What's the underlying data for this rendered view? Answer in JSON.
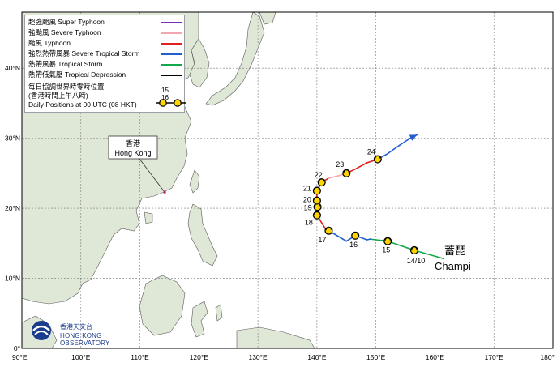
{
  "legend": {
    "items": [
      {
        "label_cn": "超強颱風",
        "label_en": "Super Typhoon",
        "color": "#7b2fbf"
      },
      {
        "label_cn": "強颱風",
        "label_en": "Severe Typhoon",
        "color": "#f4a6b0"
      },
      {
        "label_cn": "颱風",
        "label_en": "Typhoon",
        "color": "#e01f1f"
      },
      {
        "label_cn": "強烈熱帶風暴",
        "label_en": "Severe Tropical Storm",
        "color": "#1f5fcf"
      },
      {
        "label_cn": "熱帶風暴",
        "label_en": "Tropical Storm",
        "color": "#13a84a"
      },
      {
        "label_cn": "熱帶低氣壓",
        "label_en": "Tropical Depression",
        "color": "#000000"
      }
    ],
    "daily_cn_1": "每日協調世界時零時位置",
    "daily_cn_2": "(香港時間上午八時)",
    "daily_en": "Daily Positions at 00 UTC (08 HKT)",
    "daily_sample_1": "15",
    "daily_sample_2": "16"
  },
  "axes": {
    "lon_labels": [
      "90°E",
      "100°E",
      "110°E",
      "120°E",
      "130°E",
      "140°E",
      "150°E",
      "160°E",
      "170°E",
      "180°"
    ],
    "lat_labels": [
      "0°",
      "10°N",
      "20°N",
      "30°N",
      "40°N"
    ]
  },
  "hong_kong": {
    "label_cn": "香港",
    "label_en": "Hong Kong",
    "lon": 114.2,
    "lat": 22.3
  },
  "storm": {
    "name_cn": "蓄琵",
    "name_en": "Champi",
    "track": [
      {
        "lon": 161.5,
        "lat": 12.8,
        "cat": "td"
      },
      {
        "lon": 156.5,
        "lat": 14.0,
        "cat": "ts"
      },
      {
        "lon": 152.0,
        "lat": 15.3,
        "cat": "ts"
      },
      {
        "lon": 149.0,
        "lat": 15.6,
        "cat": "ts"
      },
      {
        "lon": 148.5,
        "lat": 15.5,
        "cat": "sts"
      },
      {
        "lon": 146.5,
        "lat": 16.1,
        "cat": "sts"
      },
      {
        "lon": 145.0,
        "lat": 15.3,
        "cat": "sts"
      },
      {
        "lon": 142.0,
        "lat": 16.8,
        "cat": "sts"
      },
      {
        "lon": 141.5,
        "lat": 17.0,
        "cat": "ty"
      },
      {
        "lon": 140.0,
        "lat": 19.0,
        "cat": "ty"
      },
      {
        "lon": 140.1,
        "lat": 20.2,
        "cat": "ty"
      },
      {
        "lon": 140.0,
        "lat": 21.1,
        "cat": "ty"
      },
      {
        "lon": 140.0,
        "lat": 22.5,
        "cat": "ty"
      },
      {
        "lon": 140.8,
        "lat": 23.7,
        "cat": "ty"
      },
      {
        "lon": 142.0,
        "lat": 24.3,
        "cat": "ty"
      },
      {
        "lon": 143.5,
        "lat": 24.6,
        "cat": "sty"
      },
      {
        "lon": 145.0,
        "lat": 25.0,
        "cat": "sty"
      },
      {
        "lon": 146.5,
        "lat": 25.6,
        "cat": "ty"
      },
      {
        "lon": 148.5,
        "lat": 26.5,
        "cat": "ty"
      },
      {
        "lon": 150.3,
        "lat": 27.0,
        "cat": "ty"
      },
      {
        "lon": 152.0,
        "lat": 27.8,
        "cat": "sts"
      },
      {
        "lon": 154.0,
        "lat": 29.0,
        "cat": "sts"
      },
      {
        "lon": 156.0,
        "lat": 30.1,
        "cat": "sts"
      },
      {
        "lon": 157.0,
        "lat": 30.5,
        "cat": "sts"
      }
    ],
    "daily_points": [
      {
        "label": "14/10",
        "lon": 156.5,
        "lat": 14.0
      },
      {
        "label": "15",
        "lon": 152.0,
        "lat": 15.3
      },
      {
        "label": "16",
        "lon": 146.5,
        "lat": 16.1
      },
      {
        "label": "17",
        "lon": 142.0,
        "lat": 16.8
      },
      {
        "label": "18",
        "lon": 140.0,
        "lat": 19.0
      },
      {
        "label": "19",
        "lon": 140.1,
        "lat": 20.2
      },
      {
        "label": "20",
        "lon": 140.0,
        "lat": 21.1
      },
      {
        "label": "21",
        "lon": 140.0,
        "lat": 22.5
      },
      {
        "label": "22",
        "lon": 140.8,
        "lat": 23.7
      },
      {
        "label": "23",
        "lon": 145.0,
        "lat": 25.0
      },
      {
        "label": "24",
        "lon": 150.3,
        "lat": 27.0
      }
    ]
  },
  "logo": {
    "name_cn": "香港天文台",
    "name_en": "HONG KONG OBSERVATORY"
  },
  "colors": {
    "land": "#dfe7d7",
    "sea": "#ffffff",
    "grid": "#7a7a7a",
    "frame": "#000000",
    "coast": "#5a5a5a",
    "daily_marker": "#ffd400"
  }
}
